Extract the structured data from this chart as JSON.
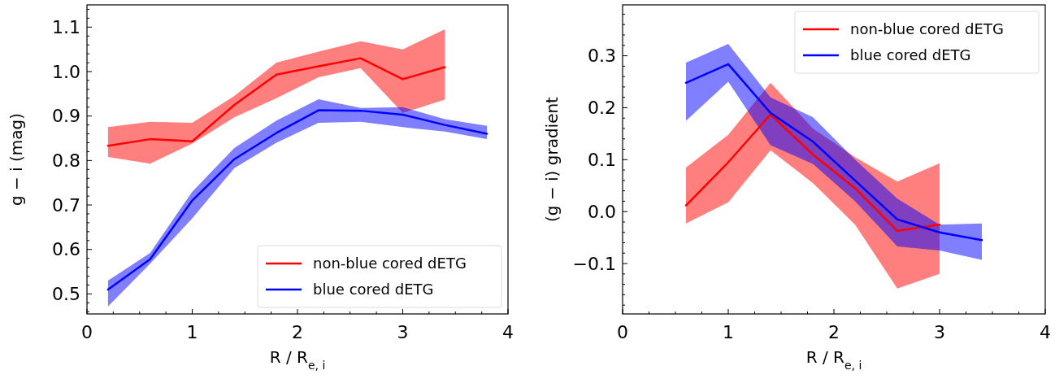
{
  "chart_data": [
    {
      "type": "line",
      "xlabel": "R / R$_{e, i}$",
      "ylabel": "g − i (mag)",
      "legend": "bottom right",
      "xlim": [
        0,
        4
      ],
      "ylim": [
        0.455,
        1.15
      ],
      "xticks": [
        0,
        1,
        2,
        3,
        4,
        {
          "value": 0.25,
          "label": null
        },
        {
          "value": 0.5,
          "label": null
        },
        {
          "value": 0.75,
          "label": null
        },
        {
          "value": 1.25,
          "label": null
        },
        {
          "value": 1.5,
          "label": null
        },
        {
          "value": 1.75,
          "label": null
        },
        {
          "value": 2.25,
          "label": null
        },
        {
          "value": 2.5,
          "label": null
        },
        {
          "value": 2.75,
          "label": null
        },
        {
          "value": 3.25,
          "label": null
        },
        {
          "value": 3.5,
          "label": null
        },
        {
          "value": 3.75,
          "label": null
        }
      ],
      "yticks": [
        0.5,
        0.6,
        0.7,
        0.8,
        0.9,
        {
          "value": 1.0,
          "label": "1.0"
        },
        1.1,
        {
          "value": 0.46,
          "label": null
        },
        {
          "value": 0.48,
          "label": null
        },
        {
          "value": 0.52,
          "label": null
        },
        {
          "value": 0.54,
          "label": null
        },
        {
          "value": 0.56,
          "label": null
        },
        {
          "value": 0.58,
          "label": null
        },
        {
          "value": 0.62,
          "label": null
        },
        {
          "value": 0.64,
          "label": null
        },
        {
          "value": 0.66,
          "label": null
        },
        {
          "value": 0.68,
          "label": null
        },
        {
          "value": 0.72,
          "label": null
        },
        {
          "value": 0.74,
          "label": null
        },
        {
          "value": 0.76,
          "label": null
        },
        {
          "value": 0.78,
          "label": null
        },
        {
          "value": 0.82,
          "label": null
        },
        {
          "value": 0.84,
          "label": null
        },
        {
          "value": 0.86,
          "label": null
        },
        {
          "value": 0.88,
          "label": null
        },
        {
          "value": 0.92,
          "label": null
        },
        {
          "value": 0.94,
          "label": null
        },
        {
          "value": 0.96,
          "label": null
        },
        {
          "value": 0.98,
          "label": null
        },
        {
          "value": 1.02,
          "label": null
        },
        {
          "value": 1.04,
          "label": null
        },
        {
          "value": 1.06,
          "label": null
        },
        {
          "value": 1.08,
          "label": null
        },
        {
          "value": 1.12,
          "label": null
        },
        {
          "value": 1.14,
          "label": null
        }
      ],
      "series": [
        {
          "name": "non-blue cored dETG",
          "color": "#ff0000",
          "x": [
            0.2,
            0.6,
            1.0,
            1.4,
            1.8,
            2.2,
            2.6,
            3.0,
            3.4
          ],
          "values": [
            0.833,
            0.848,
            0.843,
            0.925,
            0.993,
            1.012,
            1.03,
            0.983,
            1.01
          ],
          "lower": [
            0.808,
            0.793,
            0.838,
            0.897,
            0.94,
            0.987,
            1.008,
            0.907,
            0.937
          ],
          "upper": [
            0.875,
            0.887,
            0.885,
            0.945,
            1.02,
            1.045,
            1.068,
            1.05,
            1.095
          ]
        },
        {
          "name": "blue cored dETG",
          "color": "#0000ff",
          "x": [
            0.2,
            0.6,
            1.0,
            1.4,
            1.8,
            2.2,
            2.6,
            3.0,
            3.4,
            3.8
          ],
          "values": [
            0.51,
            0.578,
            0.71,
            0.803,
            0.862,
            0.913,
            0.912,
            0.903,
            0.88,
            0.86
          ],
          "lower": [
            0.472,
            0.568,
            0.67,
            0.783,
            0.84,
            0.885,
            0.887,
            0.875,
            0.865,
            0.848
          ],
          "upper": [
            0.53,
            0.592,
            0.73,
            0.828,
            0.89,
            0.938,
            0.918,
            0.92,
            0.893,
            0.878
          ]
        }
      ]
    },
    {
      "type": "line",
      "xlabel": "R / R$_{e, i}$",
      "ylabel": "(g − i)  gradient",
      "legend": "top right",
      "xlim": [
        0,
        4
      ],
      "ylim": [
        -0.197,
        0.398
      ],
      "xticks": [
        0,
        1,
        2,
        3,
        4,
        {
          "value": 0.25,
          "label": null
        },
        {
          "value": 0.5,
          "label": null
        },
        {
          "value": 0.75,
          "label": null
        },
        {
          "value": 1.25,
          "label": null
        },
        {
          "value": 1.5,
          "label": null
        },
        {
          "value": 1.75,
          "label": null
        },
        {
          "value": 2.25,
          "label": null
        },
        {
          "value": 2.5,
          "label": null
        },
        {
          "value": 2.75,
          "label": null
        },
        {
          "value": 3.25,
          "label": null
        },
        {
          "value": 3.5,
          "label": null
        },
        {
          "value": 3.75,
          "label": null
        }
      ],
      "yticks": [
        {
          "value": -0.1,
          "label": "−0.1"
        },
        {
          "value": 0.0,
          "label": "0.0"
        },
        0.1,
        0.2,
        0.3,
        {
          "value": -0.18,
          "label": null
        },
        {
          "value": -0.16,
          "label": null
        },
        {
          "value": -0.14,
          "label": null
        },
        {
          "value": -0.12,
          "label": null
        },
        {
          "value": -0.08,
          "label": null
        },
        {
          "value": -0.06,
          "label": null
        },
        {
          "value": -0.04,
          "label": null
        },
        {
          "value": -0.02,
          "label": null
        },
        {
          "value": 0.02,
          "label": null
        },
        {
          "value": 0.04,
          "label": null
        },
        {
          "value": 0.06,
          "label": null
        },
        {
          "value": 0.08,
          "label": null
        },
        {
          "value": 0.12,
          "label": null
        },
        {
          "value": 0.14,
          "label": null
        },
        {
          "value": 0.16,
          "label": null
        },
        {
          "value": 0.18,
          "label": null
        },
        {
          "value": 0.22,
          "label": null
        },
        {
          "value": 0.24,
          "label": null
        },
        {
          "value": 0.26,
          "label": null
        },
        {
          "value": 0.28,
          "label": null
        },
        {
          "value": 0.32,
          "label": null
        },
        {
          "value": 0.34,
          "label": null
        },
        {
          "value": 0.36,
          "label": null
        },
        {
          "value": 0.38,
          "label": null
        }
      ],
      "series": [
        {
          "name": "non-blue cored dETG",
          "color": "#ff0000",
          "x": [
            0.6,
            1.0,
            1.4,
            1.8,
            2.2,
            2.6,
            3.0
          ],
          "values": [
            0.012,
            0.095,
            0.187,
            0.11,
            0.045,
            -0.037,
            -0.025
          ],
          "lower": [
            -0.023,
            0.018,
            0.118,
            0.055,
            -0.025,
            -0.148,
            -0.12
          ],
          "upper": [
            0.085,
            0.148,
            0.248,
            0.16,
            0.105,
            0.058,
            0.093
          ]
        },
        {
          "name": "blue cored dETG",
          "color": "#0000ff",
          "x": [
            0.6,
            1.0,
            1.4,
            1.8,
            2.2,
            2.6,
            3.0,
            3.4
          ],
          "values": [
            0.248,
            0.284,
            0.19,
            0.135,
            0.06,
            -0.015,
            -0.04,
            -0.055
          ],
          "lower": [
            0.175,
            0.25,
            0.128,
            0.092,
            0.02,
            -0.067,
            -0.075,
            -0.093
          ],
          "upper": [
            0.287,
            0.323,
            0.22,
            0.182,
            0.1,
            0.025,
            -0.025,
            -0.023
          ]
        }
      ]
    }
  ]
}
